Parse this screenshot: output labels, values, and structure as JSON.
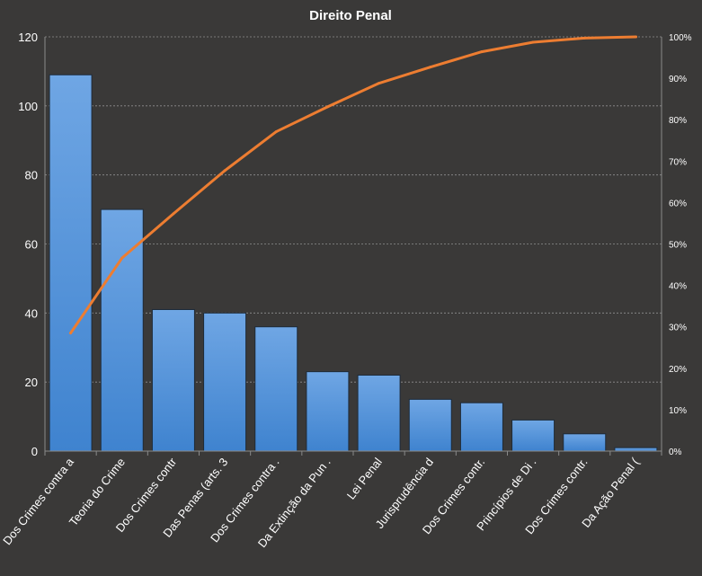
{
  "chart_data": {
    "type": "bar",
    "title": "Direito  Penal",
    "categories": [
      "Dos Crimes contra a",
      "Teoria do Crime",
      "Dos Crimes contr",
      "Das Penas (arts. 3",
      "Dos Crimes contra .",
      "Da Extinção da Pun .",
      "Lei Penal",
      "Jurisprudência d",
      "Dos Crimes contr.",
      "Princípios de Di .",
      "Dos Crimes contr.",
      "Da Ação Penal ("
    ],
    "series": [
      {
        "type": "bar",
        "axis": "left",
        "values": [
          109,
          70,
          41,
          40,
          36,
          23,
          22,
          15,
          14,
          9,
          5,
          1
        ]
      },
      {
        "type": "line",
        "axis": "right",
        "values": [
          28.5,
          46.6,
          57.3,
          67.7,
          77.1,
          83.1,
          88.8,
          92.7,
          96.4,
          98.7,
          99.7,
          100.0
        ]
      }
    ],
    "y_left": {
      "min": 0,
      "max": 120,
      "ticks": [
        "0",
        "20",
        "40",
        "60",
        "80",
        "100",
        "120"
      ]
    },
    "y_right": {
      "min": 0,
      "max": 100,
      "ticks": [
        "0%",
        "10%",
        "20%",
        "30%",
        "40%",
        "50%",
        "60%",
        "70%",
        "80%",
        "90%",
        "100%"
      ]
    },
    "grid": true,
    "legend": "none",
    "colors": {
      "background": "#3a3938",
      "bar_top": "#6fa6e4",
      "bar_bottom": "#3f83cf",
      "line": "#ed7d31"
    }
  }
}
